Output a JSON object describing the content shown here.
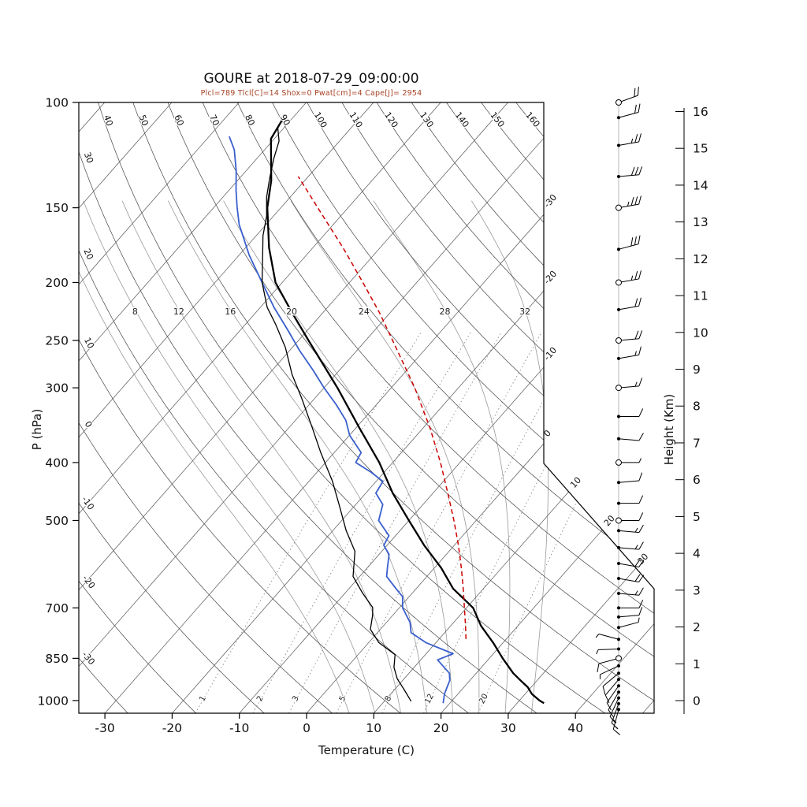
{
  "title": "GOURE at 2018-07-29_09:00:00",
  "stats_line": "Plcl=789 Tlcl[C]=14 Shox=0 Pwat[cm]=4 Cape[J]= 2954",
  "axes": {
    "x_label": "Temperature (C)",
    "y_left_label": "P (hPa)",
    "y_right_label": "Height (Km)",
    "pressure_ticks": [
      100,
      150,
      200,
      250,
      300,
      400,
      500,
      700,
      850,
      1000
    ],
    "temp_ticks": [
      -30,
      -20,
      -10,
      0,
      10,
      20,
      30,
      40
    ],
    "height_ticks": [
      0,
      1,
      2,
      3,
      4,
      5,
      6,
      7,
      8,
      9,
      10,
      11,
      12,
      13,
      14,
      15,
      16
    ]
  },
  "grid": {
    "isotherms": {
      "values": [
        -110,
        -100,
        -90,
        -80,
        -70,
        -60,
        -50,
        -40,
        -30,
        -20,
        -10,
        0,
        10,
        20,
        30,
        40,
        50
      ],
      "right_edge_labels": [
        -30,
        -20,
        -10,
        0
      ],
      "diagonal_labels": [
        10,
        20,
        30
      ]
    },
    "dry_adiabats": {
      "values": [
        -30,
        -20,
        -10,
        0,
        10,
        20,
        30,
        40,
        50,
        60,
        70,
        80,
        90,
        100,
        110,
        120,
        130,
        140,
        150,
        160
      ],
      "left_labels": [
        40,
        30,
        20,
        10,
        0,
        -10,
        -20,
        -30
      ],
      "top_labels": [
        50,
        60,
        70,
        80,
        90,
        100,
        110,
        120,
        130,
        140,
        150,
        160
      ]
    },
    "moist_adiabats": {
      "values": [
        4,
        8,
        12,
        16,
        20,
        24,
        28,
        32
      ],
      "labels": [
        8,
        12,
        16,
        20,
        24,
        28,
        32
      ]
    },
    "mixing_ratio": {
      "values": [
        1,
        2,
        3,
        5,
        8,
        12,
        20
      ],
      "labels": [
        1,
        2,
        3,
        5,
        8,
        12,
        20
      ]
    }
  },
  "chart_data": {
    "type": "skewt_log_p_sounding",
    "station": "GOURE",
    "datetime": "2018-07-29_09:00:00",
    "indices": {
      "Plcl_hPa": 789,
      "Tlcl_C": 14,
      "Shox": 0,
      "Pwat_cm": 4,
      "Cape_J": 2954
    },
    "pressure_axis_hPa": [
      100,
      1050
    ],
    "series": [
      {
        "name": "temperature",
        "color": "#000000",
        "width": 2.3,
        "style": "solid",
        "points": [
          [
            1010,
            34
          ],
          [
            1000,
            33
          ],
          [
            975,
            31
          ],
          [
            950,
            29.5
          ],
          [
            925,
            27.5
          ],
          [
            900,
            25.5
          ],
          [
            850,
            22
          ],
          [
            800,
            18.5
          ],
          [
            750,
            14.5
          ],
          [
            700,
            11
          ],
          [
            650,
            5.5
          ],
          [
            600,
            1
          ],
          [
            550,
            -4.5
          ],
          [
            500,
            -10
          ],
          [
            450,
            -16
          ],
          [
            400,
            -22
          ],
          [
            350,
            -29.5
          ],
          [
            300,
            -38
          ],
          [
            250,
            -48.5
          ],
          [
            225,
            -54.5
          ],
          [
            200,
            -61
          ],
          [
            175,
            -66.5
          ],
          [
            150,
            -72
          ],
          [
            135,
            -75
          ],
          [
            115,
            -80.5
          ],
          [
            105,
            -81.5
          ]
        ]
      },
      {
        "name": "dewpoint",
        "color": "#3a5fcd",
        "width": 1.8,
        "style": "solid",
        "points": [
          [
            1010,
            19
          ],
          [
            975,
            18
          ],
          [
            950,
            17.5
          ],
          [
            925,
            17
          ],
          [
            900,
            16
          ],
          [
            855,
            12.5
          ],
          [
            835,
            14
          ],
          [
            800,
            8.5
          ],
          [
            770,
            5
          ],
          [
            740,
            3.5
          ],
          [
            700,
            0.5
          ],
          [
            670,
            -1
          ],
          [
            650,
            -3
          ],
          [
            620,
            -6
          ],
          [
            600,
            -7
          ],
          [
            570,
            -8.5
          ],
          [
            550,
            -10.5
          ],
          [
            530,
            -11
          ],
          [
            500,
            -14.5
          ],
          [
            470,
            -16
          ],
          [
            450,
            -18.5
          ],
          [
            430,
            -19
          ],
          [
            415,
            -22
          ],
          [
            400,
            -25.5
          ],
          [
            385,
            -26
          ],
          [
            360,
            -30
          ],
          [
            340,
            -32.5
          ],
          [
            320,
            -36
          ],
          [
            300,
            -40
          ],
          [
            280,
            -44
          ],
          [
            260,
            -48.5
          ],
          [
            240,
            -53
          ],
          [
            220,
            -58
          ],
          [
            200,
            -63
          ],
          [
            180,
            -68.5
          ],
          [
            160,
            -74
          ],
          [
            150,
            -76.5
          ],
          [
            140,
            -79
          ],
          [
            130,
            -81.5
          ],
          [
            120,
            -84.5
          ],
          [
            114,
            -87
          ]
        ]
      },
      {
        "name": "aux-profile",
        "color": "#000000",
        "width": 1.3,
        "style": "solid",
        "points": [
          [
            1003,
            14
          ],
          [
            960,
            11.5
          ],
          [
            920,
            9
          ],
          [
            880,
            7
          ],
          [
            838,
            5.5
          ],
          [
            800,
            1.5
          ],
          [
            760,
            -1.5
          ],
          [
            720,
            -3
          ],
          [
            699,
            -4
          ],
          [
            660,
            -7.5
          ],
          [
            620,
            -11
          ],
          [
            563,
            -14
          ],
          [
            520,
            -18
          ],
          [
            470,
            -22.5
          ],
          [
            430,
            -26.5
          ],
          [
            385,
            -32
          ],
          [
            350,
            -36.5
          ],
          [
            312,
            -42
          ],
          [
            285,
            -46.5
          ],
          [
            257,
            -51
          ],
          [
            235,
            -55.5
          ],
          [
            220,
            -59
          ],
          [
            200,
            -63
          ],
          [
            180,
            -66.5
          ],
          [
            167,
            -69
          ],
          [
            155,
            -71
          ],
          [
            144,
            -73.5
          ],
          [
            134,
            -75.5
          ],
          [
            124,
            -77.5
          ],
          [
            116,
            -79
          ],
          [
            110,
            -81
          ]
        ]
      },
      {
        "name": "parcel-ascent",
        "color": "#cc0000",
        "width": 1.5,
        "style": "dashed",
        "dash": "6,4",
        "points": [
          [
            789,
            14
          ],
          [
            750,
            12.2
          ],
          [
            700,
            9.7
          ],
          [
            650,
            7
          ],
          [
            600,
            4
          ],
          [
            550,
            0.6
          ],
          [
            500,
            -3.3
          ],
          [
            450,
            -7.8
          ],
          [
            400,
            -12.9
          ],
          [
            350,
            -19
          ],
          [
            300,
            -26.5
          ],
          [
            250,
            -36
          ],
          [
            225,
            -41.5
          ],
          [
            200,
            -48
          ],
          [
            175,
            -55.5
          ],
          [
            150,
            -64.5
          ],
          [
            140,
            -68.5
          ],
          [
            133,
            -71.5
          ]
        ]
      }
    ],
    "wind_barbs": [
      [
        1035,
        195,
        15,
        "d"
      ],
      [
        1012,
        200,
        15,
        "d"
      ],
      [
        990,
        205,
        10,
        "d"
      ],
      [
        968,
        210,
        10,
        "d"
      ],
      [
        945,
        215,
        10,
        "d"
      ],
      [
        922,
        220,
        10,
        "d"
      ],
      [
        900,
        230,
        10,
        "d"
      ],
      [
        875,
        245,
        5,
        "d"
      ],
      [
        850,
        255,
        10,
        "c"
      ],
      [
        820,
        268,
        5,
        "d"
      ],
      [
        790,
        285,
        5,
        "d"
      ],
      [
        755,
        75,
        5,
        "d"
      ],
      [
        725,
        85,
        10,
        "d"
      ],
      [
        700,
        90,
        10,
        "d"
      ],
      [
        662,
        95,
        15,
        "d"
      ],
      [
        625,
        100,
        20,
        "d"
      ],
      [
        590,
        100,
        20,
        "d"
      ],
      [
        555,
        95,
        15,
        "d"
      ],
      [
        520,
        95,
        15,
        "d"
      ],
      [
        500,
        90,
        10,
        "c"
      ],
      [
        468,
        90,
        10,
        "d"
      ],
      [
        432,
        85,
        10,
        "d"
      ],
      [
        400,
        90,
        5,
        "c"
      ],
      [
        365,
        95,
        10,
        "d"
      ],
      [
        335,
        90,
        10,
        "d"
      ],
      [
        300,
        85,
        15,
        "c"
      ],
      [
        268,
        80,
        15,
        "d"
      ],
      [
        250,
        85,
        20,
        "c"
      ],
      [
        222,
        80,
        20,
        "d"
      ],
      [
        200,
        80,
        25,
        "c"
      ],
      [
        176,
        75,
        30,
        "d"
      ],
      [
        150,
        80,
        35,
        "c"
      ],
      [
        133,
        85,
        30,
        "d"
      ],
      [
        118,
        80,
        25,
        "d"
      ],
      [
        106,
        75,
        20,
        "d"
      ],
      [
        100,
        70,
        20,
        "c"
      ]
    ]
  },
  "colors": {
    "temperature": "#000000",
    "dewpoint": "#3a5fcd",
    "parcel": "#cc0000",
    "stats_text": "#a84325",
    "isotherm": "#555555",
    "dry_adiabat": "#444444",
    "moist_adiabat": "#9a9a9a",
    "mixing_ratio": "#8a8a8a",
    "barb": "#000000"
  }
}
